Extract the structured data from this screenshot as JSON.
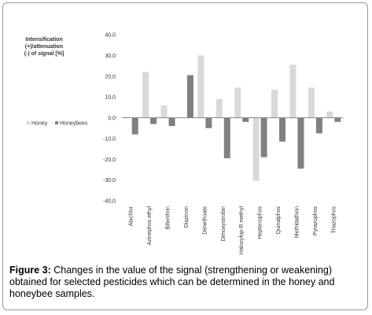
{
  "chart_data": {
    "type": "bar",
    "y_label": [
      "Intensification",
      "(+)/attenuation",
      "(-) of signal [%]"
    ],
    "categories": [
      "Alachlor",
      "Azinephos ethyl",
      "Bifenthrin",
      "Diazinon",
      "Dimethoate",
      "Dimoxystrobin",
      "Haloxyfop-R methyl",
      "Heptenophos",
      "Quinalphos",
      "Methidathion",
      "Pyrazophos",
      "Triazophos"
    ],
    "series": [
      {
        "name": "Honey",
        "color": "#d9d9d9",
        "values": [
          0,
          22,
          6,
          0,
          30,
          9,
          14.5,
          -30.5,
          13.5,
          25.5,
          14.5,
          3
        ]
      },
      {
        "name": "Honeybees",
        "color": "#808080",
        "values": [
          -8,
          -3,
          -4,
          20.5,
          -5,
          -19.5,
          -2,
          -19,
          -11.5,
          -24.5,
          -7.5,
          -2
        ]
      }
    ],
    "ylim": [
      -40,
      40
    ],
    "yticks": [
      {
        "value": -40,
        "label": "-40,0"
      },
      {
        "value": -30,
        "label": "-30,0"
      },
      {
        "value": -20,
        "label": "-20,0"
      },
      {
        "value": -10,
        "label": "-10,0"
      },
      {
        "value": 0,
        "label": "0,0"
      },
      {
        "value": 10,
        "label": "10,0"
      },
      {
        "value": 20,
        "label": "20,0"
      },
      {
        "value": 30,
        "label": "30,0"
      },
      {
        "value": 40,
        "label": "40,0"
      }
    ],
    "caption_label": "Figure 3:",
    "caption": "Changes in the value of the signal (strengthening or weakening) obtained for selected pesticides which can be determined in the honey and honeybee samples."
  }
}
